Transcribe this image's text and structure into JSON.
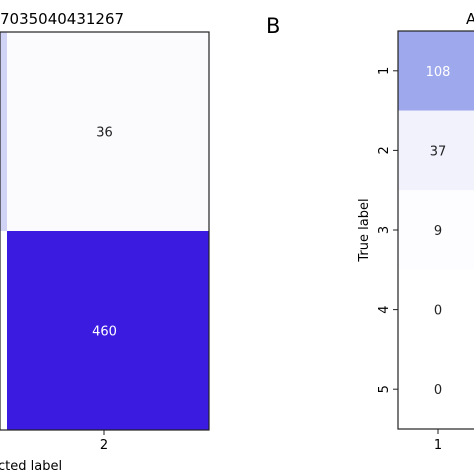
{
  "panel_b_letter": "B",
  "chart_data": [
    {
      "type": "heatmap",
      "title": "7035040431267",
      "xlabel": "cted label",
      "ylabel": "",
      "x_tick_labels": [
        "2"
      ],
      "cells": [
        {
          "value": 36,
          "label": "36",
          "color": "#fbfbfe",
          "text_color": "#222222"
        },
        {
          "value": 460,
          "label": "460",
          "color": "#3c1be0",
          "text_color": "#ffffff"
        }
      ],
      "left_edge_color": "#d0d2f6"
    },
    {
      "type": "heatmap",
      "title": "A",
      "xlabel": "",
      "ylabel": "True label",
      "y_tick_labels": [
        "1",
        "2",
        "3",
        "4",
        "5"
      ],
      "x_tick_labels": [
        "1"
      ],
      "cells": [
        {
          "value": 108,
          "label": "108",
          "color": "#9ea8ec",
          "text_color": "#ffffff"
        },
        {
          "value": 37,
          "label": "37",
          "color": "#f2f2fd",
          "text_color": "#222222"
        },
        {
          "value": 9,
          "label": "9",
          "color": "#fdfdff",
          "text_color": "#222222"
        },
        {
          "value": 0,
          "label": "0",
          "color": "#ffffff",
          "text_color": "#222222"
        },
        {
          "value": 0,
          "label": "0",
          "color": "#ffffff",
          "text_color": "#222222"
        }
      ]
    }
  ]
}
